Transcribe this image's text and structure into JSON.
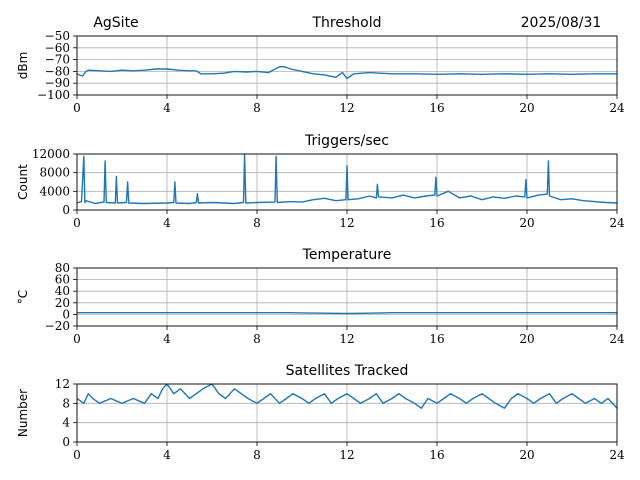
{
  "header": {
    "site": "AgSite",
    "date": "2025/08/31"
  },
  "series_color": "#1f77b4",
  "chart_data": [
    {
      "id": "threshold",
      "type": "line",
      "title": "Threshold",
      "ylabel": "dBm",
      "xlim": [
        0,
        24
      ],
      "ylim": [
        -100,
        -50
      ],
      "xticks": [
        0,
        4,
        8,
        12,
        16,
        20,
        24
      ],
      "yticks": [
        -100,
        -90,
        -80,
        -70,
        -60,
        -50
      ],
      "ytick_labels": [
        "−100",
        "−90",
        "−80",
        "−70",
        "−60",
        "−50"
      ],
      "x": [
        0,
        0.1,
        0.25,
        0.4,
        0.5,
        1,
        1.5,
        2,
        2.5,
        3,
        3.5,
        4,
        4.5,
        5,
        5.3,
        5.5,
        6,
        6.5,
        7,
        7.5,
        8,
        8.5,
        9,
        9.2,
        9.5,
        10,
        10.5,
        11,
        11.5,
        11.8,
        12,
        12.3,
        13,
        14,
        15,
        16,
        17,
        18,
        19,
        20,
        21,
        22,
        23,
        24
      ],
      "y": [
        -82,
        -83,
        -84,
        -80,
        -79,
        -79.5,
        -80,
        -79,
        -79.5,
        -79,
        -78,
        -78,
        -79,
        -79.5,
        -79.5,
        -82,
        -82,
        -81.5,
        -80,
        -80.5,
        -80,
        -81,
        -76,
        -76,
        -78,
        -80,
        -82,
        -83,
        -85,
        -81,
        -86,
        -82,
        -81,
        -82,
        -82,
        -82.5,
        -82,
        -82.5,
        -82,
        -82.5,
        -82,
        -82.5,
        -82,
        -82
      ]
    },
    {
      "id": "triggers",
      "type": "line",
      "title": "Triggers/sec",
      "ylabel": "Count",
      "xlim": [
        0,
        24
      ],
      "ylim": [
        0,
        12000
      ],
      "xticks": [
        0,
        4,
        8,
        12,
        16,
        20,
        24
      ],
      "yticks": [
        0,
        4000,
        8000,
        12000
      ],
      "ytick_labels": [
        "0",
        "4000",
        "8000",
        "12000"
      ],
      "x": [
        0,
        0.2,
        0.3,
        0.35,
        0.4,
        0.8,
        1.2,
        1.25,
        1.3,
        1.7,
        1.75,
        1.8,
        2.2,
        2.25,
        2.3,
        3,
        4,
        4.3,
        4.35,
        4.4,
        5,
        5.3,
        5.35,
        5.4,
        6,
        6.5,
        7,
        7.4,
        7.45,
        7.5,
        8,
        8.8,
        8.85,
        8.9,
        9.5,
        10,
        10.5,
        11,
        11.5,
        11.95,
        12,
        12.05,
        12.5,
        13,
        13.3,
        13.35,
        13.4,
        14,
        14.5,
        15,
        15.5,
        15.9,
        15.95,
        16,
        16.5,
        17,
        17.5,
        18,
        18.5,
        19,
        19.5,
        19.9,
        19.95,
        20,
        20.5,
        20.9,
        20.95,
        21,
        21.5,
        22,
        22.5,
        23,
        23.5,
        24
      ],
      "y": [
        1500,
        1800,
        11500,
        1600,
        2000,
        1400,
        1700,
        10500,
        1600,
        1500,
        7200,
        1500,
        1600,
        6000,
        1500,
        1400,
        1500,
        1600,
        6000,
        1500,
        1400,
        1600,
        3500,
        1500,
        1600,
        1500,
        1400,
        1600,
        12000,
        1500,
        1600,
        1700,
        11500,
        1600,
        1800,
        1700,
        2200,
        2500,
        2000,
        2200,
        9500,
        2200,
        2400,
        3000,
        2600,
        5500,
        2800,
        2600,
        3200,
        2600,
        3000,
        3200,
        7000,
        3000,
        4000,
        2600,
        3000,
        2200,
        2800,
        2500,
        3000,
        2800,
        6500,
        2600,
        3200,
        3400,
        10500,
        3000,
        2200,
        2400,
        2000,
        1800,
        1600,
        1500
      ]
    },
    {
      "id": "temperature",
      "type": "line",
      "title": "Temperature",
      "ylabel": "°C",
      "xlim": [
        0,
        24
      ],
      "ylim": [
        -20,
        80
      ],
      "xticks": [
        0,
        4,
        8,
        12,
        16,
        20,
        24
      ],
      "yticks": [
        -20,
        0,
        20,
        40,
        60,
        80
      ],
      "ytick_labels": [
        "−20",
        "0",
        "20",
        "40",
        "60",
        "80"
      ],
      "x": [
        0,
        4,
        8,
        9.5,
        10,
        11,
        12,
        13,
        13.5,
        14,
        16,
        20,
        24
      ],
      "y": [
        3,
        3,
        3,
        3,
        2.5,
        2,
        1.5,
        2,
        2.5,
        3,
        3,
        3,
        3
      ]
    },
    {
      "id": "satellites",
      "type": "line",
      "title": "Satellites Tracked",
      "ylabel": "Number",
      "xlim": [
        0,
        24
      ],
      "ylim": [
        0,
        12
      ],
      "xticks": [
        0,
        4,
        8,
        12,
        16,
        20,
        24
      ],
      "yticks": [
        0,
        4,
        8,
        12
      ],
      "ytick_labels": [
        "0",
        "4",
        "8",
        "12"
      ],
      "x": [
        0,
        0.3,
        0.5,
        0.7,
        1,
        1.5,
        2,
        2.5,
        3,
        3.3,
        3.6,
        3.8,
        4,
        4.3,
        4.6,
        5,
        5.3,
        5.6,
        6,
        6.3,
        6.6,
        7,
        7.3,
        7.6,
        8,
        8.3,
        8.6,
        9,
        9.3,
        9.6,
        10,
        10.3,
        10.6,
        11,
        11.3,
        11.6,
        12,
        12.3,
        12.6,
        13,
        13.3,
        13.6,
        14,
        14.3,
        14.6,
        15,
        15.3,
        15.6,
        16,
        16.3,
        16.6,
        17,
        17.3,
        17.6,
        18,
        18.3,
        18.6,
        19,
        19.3,
        19.6,
        20,
        20.3,
        20.6,
        21,
        21.3,
        21.6,
        22,
        22.3,
        22.6,
        23,
        23.3,
        23.6,
        24
      ],
      "y": [
        9,
        8,
        10,
        9,
        8,
        9,
        8,
        9,
        8,
        10,
        9,
        11,
        12,
        10,
        11,
        9,
        10,
        11,
        12,
        10,
        9,
        11,
        10,
        9,
        8,
        9,
        10,
        8,
        9,
        10,
        9,
        8,
        9,
        10,
        8,
        9,
        10,
        9,
        8,
        9,
        10,
        8,
        9,
        10,
        9,
        8,
        7,
        9,
        8,
        9,
        10,
        9,
        8,
        9,
        10,
        9,
        8,
        7,
        9,
        10,
        9,
        8,
        9,
        10,
        8,
        9,
        10,
        9,
        8,
        9,
        8,
        9,
        7
      ]
    }
  ]
}
